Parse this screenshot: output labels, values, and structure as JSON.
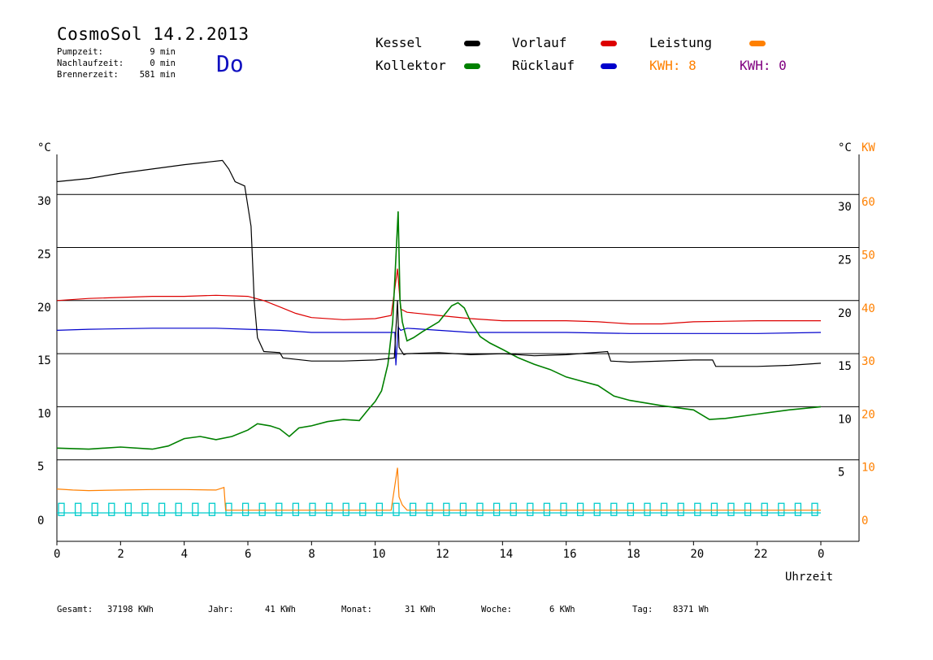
{
  "header": {
    "title": "CosmoSol 14.2.2013",
    "day": "Do",
    "stats": [
      {
        "label": "Pumpzeit:",
        "value": "9 min"
      },
      {
        "label": "Nachlaufzeit:",
        "value": "0 min"
      },
      {
        "label": "Brennerzeit:",
        "value": "581 min"
      }
    ]
  },
  "legend": {
    "kessel": "Kessel",
    "kollektor": "Kollektor",
    "vorlauf": "Vorlauf",
    "ruecklauf": "Rücklauf",
    "leistung": "Leistung",
    "kwh_orange": "KWH: 8",
    "kwh_purple": "KWH: 0"
  },
  "footer": [
    {
      "label": "Gesamt:",
      "value": "37198 KWh"
    },
    {
      "label": "Jahr:",
      "value": "41 KWh"
    },
    {
      "label": "Monat:",
      "value": "31 KWh"
    },
    {
      "label": "Woche:",
      "value": "6 KWh"
    },
    {
      "label": "Tag:",
      "value": "8371 Wh"
    }
  ],
  "chart_data": {
    "type": "line",
    "title": "CosmoSol 14.2.2013",
    "xlabel": "Uhrzeit",
    "ylabel_left": "°C",
    "ylabel_right_temp": "°C",
    "ylabel_right_power": "KW",
    "xlim": [
      0,
      24
    ],
    "ylim_left": [
      0,
      33
    ],
    "ylim_right_power": [
      0,
      66
    ],
    "x_ticks": [
      "0",
      "2",
      "4",
      "6",
      "8",
      "10",
      "12",
      "14",
      "16",
      "18",
      "20",
      "22",
      "0"
    ],
    "y_ticks_left": [
      "0",
      "5",
      "10",
      "15",
      "20",
      "25",
      "30"
    ],
    "y_ticks_right": [
      "5",
      "10",
      "15",
      "20",
      "25",
      "30"
    ],
    "y_ticks_power": [
      "0",
      "10",
      "20",
      "30",
      "40",
      "50",
      "60"
    ],
    "grid": "horizontal",
    "colors": {
      "kessel": "#000000",
      "kollektor": "#008000",
      "vorlauf": "#dd0000",
      "ruecklauf": "#0000cc",
      "leistung": "#ff8000",
      "kwh_purple": "#800080",
      "pump": "#00cccc"
    },
    "series": [
      {
        "name": "Kessel",
        "color": "#000000",
        "points": [
          [
            0,
            31.2
          ],
          [
            1,
            31.5
          ],
          [
            2,
            32
          ],
          [
            3,
            32.4
          ],
          [
            4,
            32.8
          ],
          [
            5.2,
            33.2
          ],
          [
            5.4,
            32.4
          ],
          [
            5.6,
            31.2
          ],
          [
            5.9,
            30.8
          ],
          [
            6.1,
            27
          ],
          [
            6.2,
            20
          ],
          [
            6.3,
            16.5
          ],
          [
            6.5,
            15.2
          ],
          [
            7,
            15.1
          ],
          [
            7.1,
            14.6
          ],
          [
            8,
            14.3
          ],
          [
            9,
            14.3
          ],
          [
            10,
            14.4
          ],
          [
            10.6,
            14.6
          ],
          [
            10.7,
            20
          ],
          [
            10.75,
            15.6
          ],
          [
            10.9,
            14.9
          ],
          [
            11,
            15
          ],
          [
            12,
            15.1
          ],
          [
            13,
            14.9
          ],
          [
            14,
            15
          ],
          [
            15,
            14.8
          ],
          [
            16,
            14.9
          ],
          [
            17.3,
            15.2
          ],
          [
            17.4,
            14.3
          ],
          [
            18,
            14.2
          ],
          [
            20,
            14.4
          ],
          [
            20.6,
            14.4
          ],
          [
            20.7,
            13.8
          ],
          [
            22,
            13.8
          ],
          [
            23,
            13.9
          ],
          [
            24,
            14.1
          ]
        ]
      },
      {
        "name": "Kollektor",
        "color": "#008000",
        "points": [
          [
            0,
            6.1
          ],
          [
            1,
            6
          ],
          [
            2,
            6.2
          ],
          [
            3,
            6
          ],
          [
            3.5,
            6.3
          ],
          [
            4,
            7
          ],
          [
            4.5,
            7.2
          ],
          [
            5,
            6.9
          ],
          [
            5.5,
            7.2
          ],
          [
            6,
            7.8
          ],
          [
            6.3,
            8.4
          ],
          [
            6.7,
            8.2
          ],
          [
            7,
            7.9
          ],
          [
            7.3,
            7.2
          ],
          [
            7.6,
            8
          ],
          [
            8,
            8.2
          ],
          [
            8.5,
            8.6
          ],
          [
            9,
            8.8
          ],
          [
            9.5,
            8.7
          ],
          [
            9.8,
            9.8
          ],
          [
            10,
            10.5
          ],
          [
            10.2,
            11.5
          ],
          [
            10.4,
            14
          ],
          [
            10.55,
            18
          ],
          [
            10.65,
            24
          ],
          [
            10.72,
            28.4
          ],
          [
            10.78,
            20
          ],
          [
            10.85,
            18
          ],
          [
            11,
            16.2
          ],
          [
            11.2,
            16.5
          ],
          [
            11.5,
            17.1
          ],
          [
            12,
            18
          ],
          [
            12.4,
            19.5
          ],
          [
            12.6,
            19.8
          ],
          [
            12.8,
            19.3
          ],
          [
            13,
            18
          ],
          [
            13.3,
            16.6
          ],
          [
            13.6,
            16
          ],
          [
            14,
            15.4
          ],
          [
            14.5,
            14.6
          ],
          [
            15,
            14
          ],
          [
            15.5,
            13.5
          ],
          [
            16,
            12.8
          ],
          [
            16.5,
            12.4
          ],
          [
            17,
            12
          ],
          [
            17.5,
            11
          ],
          [
            18,
            10.6
          ],
          [
            19,
            10.1
          ],
          [
            20,
            9.7
          ],
          [
            20.5,
            8.8
          ],
          [
            21,
            8.9
          ],
          [
            22,
            9.3
          ],
          [
            23,
            9.7
          ],
          [
            24,
            10
          ]
        ]
      },
      {
        "name": "Vorlauf",
        "color": "#dd0000",
        "points": [
          [
            0,
            20
          ],
          [
            1,
            20.2
          ],
          [
            3,
            20.4
          ],
          [
            4,
            20.4
          ],
          [
            5,
            20.5
          ],
          [
            6,
            20.4
          ],
          [
            6.5,
            20
          ],
          [
            7,
            19.4
          ],
          [
            7.5,
            18.8
          ],
          [
            8,
            18.4
          ],
          [
            9,
            18.2
          ],
          [
            10,
            18.3
          ],
          [
            10.5,
            18.6
          ],
          [
            10.7,
            23
          ],
          [
            10.8,
            19.2
          ],
          [
            11,
            18.9
          ],
          [
            12,
            18.6
          ],
          [
            13,
            18.3
          ],
          [
            14,
            18.1
          ],
          [
            16,
            18.1
          ],
          [
            17,
            18
          ],
          [
            18,
            17.8
          ],
          [
            19,
            17.8
          ],
          [
            20,
            18
          ],
          [
            22,
            18.1
          ],
          [
            24,
            18.1
          ]
        ]
      },
      {
        "name": "Rücklauf",
        "color": "#0000cc",
        "points": [
          [
            0,
            17.2
          ],
          [
            1,
            17.3
          ],
          [
            3,
            17.4
          ],
          [
            5,
            17.4
          ],
          [
            6,
            17.3
          ],
          [
            7,
            17.2
          ],
          [
            8,
            17
          ],
          [
            9,
            17
          ],
          [
            10,
            17
          ],
          [
            10.5,
            17
          ],
          [
            10.62,
            17
          ],
          [
            10.65,
            13.9
          ],
          [
            10.72,
            17.5
          ],
          [
            10.8,
            17.2
          ],
          [
            11,
            17.4
          ],
          [
            12,
            17.2
          ],
          [
            13,
            17
          ],
          [
            14,
            17
          ],
          [
            16,
            17
          ],
          [
            18,
            16.9
          ],
          [
            20,
            16.9
          ],
          [
            22,
            16.9
          ],
          [
            24,
            17
          ]
        ]
      },
      {
        "name": "Leistung",
        "color": "#ff8000",
        "axis": "power",
        "points": [
          [
            0,
            4.5
          ],
          [
            0.5,
            4.3
          ],
          [
            1,
            4.2
          ],
          [
            2,
            4.3
          ],
          [
            3,
            4.4
          ],
          [
            4,
            4.4
          ],
          [
            5,
            4.3
          ],
          [
            5.25,
            4.8
          ],
          [
            5.3,
            0.5
          ],
          [
            10.5,
            0.5
          ],
          [
            10.7,
            8.5
          ],
          [
            10.75,
            3
          ],
          [
            10.85,
            1.5
          ],
          [
            11,
            0.5
          ],
          [
            24,
            0.5
          ]
        ]
      }
    ]
  }
}
